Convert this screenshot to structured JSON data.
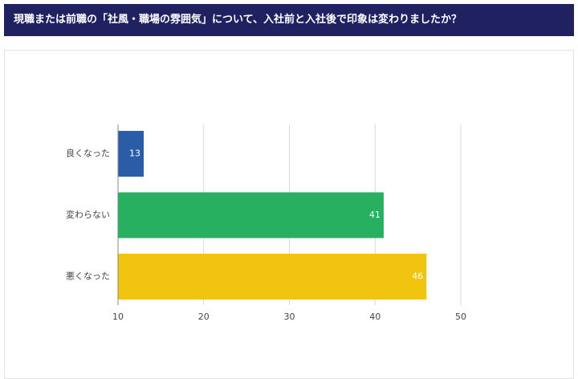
{
  "chart_data": {
    "type": "barh",
    "title": "現職または前職の「社風・職場の雰囲気」について、入社前と入社後で印象は変わりましたか？",
    "categories": [
      "良くなった",
      "変わらない",
      "悪くなった"
    ],
    "values": [
      13,
      41,
      46
    ],
    "colors": [
      "#2a5ca8",
      "#27b060",
      "#f1c40f"
    ],
    "xlim": [
      10,
      50
    ],
    "xticks": [
      10,
      20,
      30,
      40,
      50
    ],
    "grid": true
  }
}
